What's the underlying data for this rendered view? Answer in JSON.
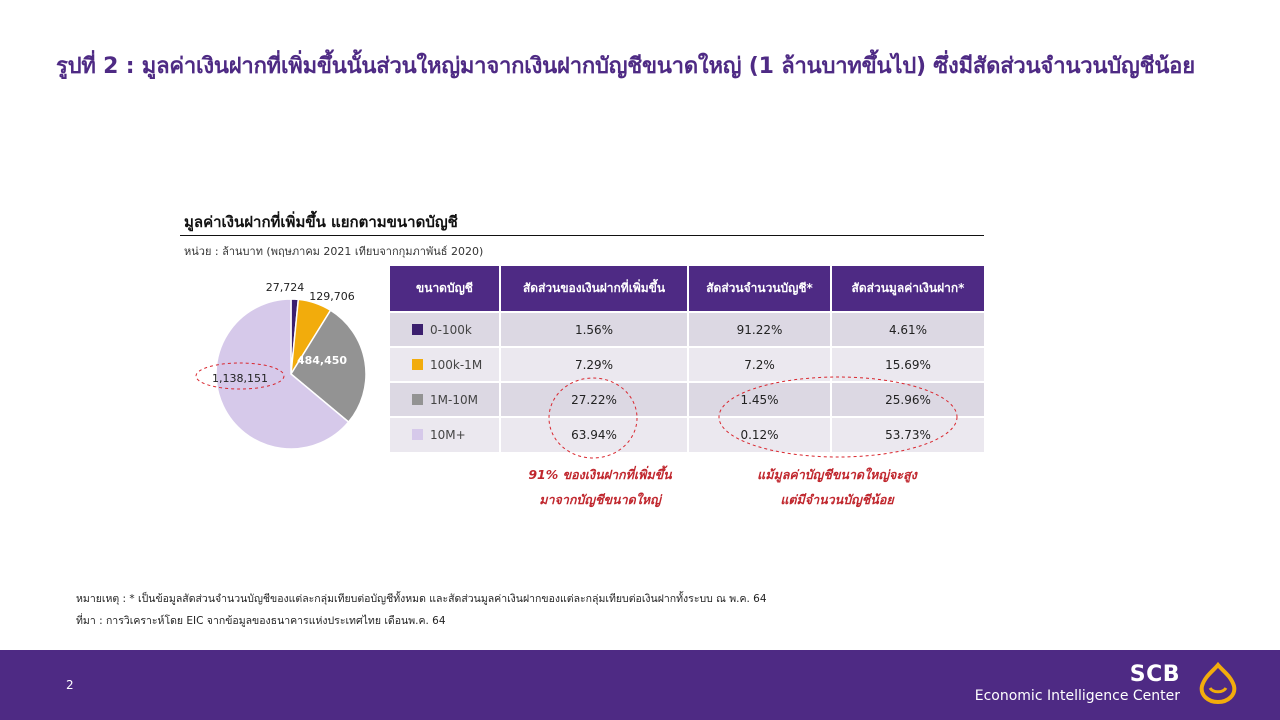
{
  "headline": "รูปที่ 2 : มูลค่าเงินฝากที่เพิ่มขึ้นนั้นส่วนใหญ่มาจากเงินฝากบัญชีขนาดใหญ่ (1 ล้านบาทขึ้นไป) ซึ่งมีสัดส่วนจำนวนบัญชีน้อย",
  "chart_data": [
    {
      "type": "pie",
      "title": "มูลค่าเงินฝากที่เพิ่มขึ้น แยกตามขนาดบัญชี",
      "subtitle": "หน่วย : ล้านบาท (พฤษภาคม 2021 เทียบจากกุมภาพันธ์ 2020)",
      "categories": [
        "0-100k",
        "100k-1M",
        "1M-10M",
        "10M+"
      ],
      "values": [
        27724,
        129706,
        484450,
        1138151
      ],
      "value_labels": [
        "27,724",
        "129,706",
        "484,450",
        "1,138,151"
      ],
      "colors": [
        "#3b1f6e",
        "#f2ac0c",
        "#939393",
        "#d6c9ea"
      ],
      "highlighted": "10M+"
    },
    {
      "type": "table",
      "columns": [
        "ขนาดบัญชี",
        "สัดส่วนของเงินฝากที่เพิ่มขึ้น",
        "สัดส่วนจำนวนบัญชี*",
        "สัดส่วนมูลค่าเงินฝาก*"
      ],
      "rows": [
        {
          "size": "0-100k",
          "color": "#3b1f6e",
          "deposit_increase_share": "1.56%",
          "account_share": "91.22%",
          "deposit_value_share": "4.61%"
        },
        {
          "size": "100k-1M",
          "color": "#f2ac0c",
          "deposit_increase_share": "7.29%",
          "account_share": "7.2%",
          "deposit_value_share": "15.69%"
        },
        {
          "size": "1M-10M",
          "color": "#939393",
          "deposit_increase_share": "27.22%",
          "account_share": "1.45%",
          "deposit_value_share": "25.96%"
        },
        {
          "size": "10M+",
          "color": "#d6c9ea",
          "deposit_increase_share": "63.94%",
          "account_share": "0.12%",
          "deposit_value_share": "53.73%"
        }
      ]
    }
  ],
  "annotations": {
    "left_line1": "91% ของเงินฝากที่เพิ่มขึ้น",
    "left_line2": "มาจากบัญชีขนาดใหญ่",
    "right_line1": "แม้มูลค่าบัญชีขนาดใหญ่จะสูง",
    "right_line2": "แต่มีจำนวนบัญชีน้อย"
  },
  "footnotes": {
    "note": "หมายเหตุ : * เป็นข้อมูลสัดส่วนจำนวนบัญชีของแต่ละกลุ่มเทียบต่อบัญชีทั้งหมด และสัดส่วนมูลค่าเงินฝากของแต่ละกลุ่มเทียบต่อเงินฝากทั้งระบบ ณ พ.ค. 64",
    "source": "ที่มา : การวิเคราะห์โดย EIC จากข้อมูลของธนาคารแห่งประเทศไทย เดือนพ.ค. 64"
  },
  "footer": {
    "page_number": "2",
    "brand": "SCB",
    "brand_sub": "Economic Intelligence Center",
    "accent_color": "#4e2a84"
  }
}
